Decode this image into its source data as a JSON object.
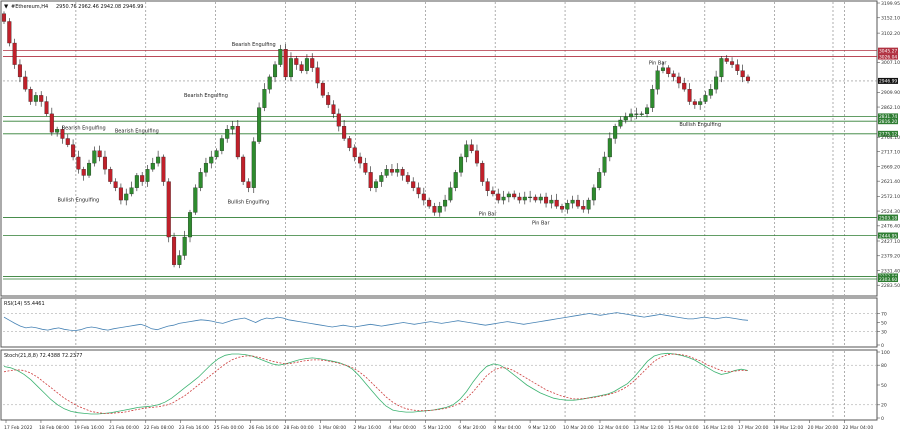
{
  "header": {
    "symbol_line": "#Ethereum,H4",
    "ohlc": "2950.76 2962.46 2942.08 2946.99"
  },
  "colors": {
    "bull": "#2e8b2e",
    "bear": "#c0202a",
    "wick": "#1a1a1a",
    "support": "#2e7d32",
    "resistance": "#b03040",
    "rsi": "#4682b4",
    "stoch_main": "#3cb371",
    "stoch_signal": "#cd3c3c",
    "grid": "#7a7a7a",
    "axis_text": "#333333",
    "bg": "#ffffff",
    "border": "#555555"
  },
  "chart_data": [
    {
      "type": "candlestick",
      "title": "#Ethereum,H4",
      "ylim": [
        2255,
        3200
      ],
      "y_ticks": [
        3199.95,
        3152.1,
        3102.2,
        3007.1,
        2909.9,
        2862.1,
        2764.1,
        2717.1,
        2669.2,
        2621.4,
        2572.1,
        2524.3,
        2476.4,
        2427.1,
        2379.2,
        2331.4,
        2283.5
      ],
      "x_labels": [
        "17 Feb 2022",
        "18 Feb 08:00",
        "19 Feb 16:00",
        "21 Feb 00:00",
        "22 Feb 08:00",
        "23 Feb 16:00",
        "25 Feb 00:00",
        "26 Feb 16:00",
        "28 Feb 00:00",
        "1 Mar 08:00",
        "2 Mar 16:00",
        "4 Mar 00:00",
        "5 Mar 12:00",
        "6 Mar 20:00",
        "8 Mar 04:00",
        "9 Mar 12:00",
        "10 Mar 20:00",
        "12 Mar 04:00",
        "13 Mar 12:00",
        "15 Mar 04:00",
        "16 Mar 12:00",
        "17 Mar 20:00",
        "19 Mar 12:00",
        "20 Mar 20:00",
        "22 Mar 04:00"
      ],
      "current_price": "2946.99",
      "levels": [
        {
          "price": 3045.27,
          "label": "3045.27",
          "kind": "resistance"
        },
        {
          "price": 3026.04,
          "label": "3026.04",
          "kind": "resistance"
        },
        {
          "price": 2831.74,
          "label": "2831.74",
          "kind": "support"
        },
        {
          "price": 2816.2,
          "label": "2816.20",
          "kind": "support"
        },
        {
          "price": 2775.12,
          "label": "2775.12",
          "kind": "support"
        },
        {
          "price": 2503.18,
          "label": "2503.18",
          "kind": "support"
        },
        {
          "price": 2444.95,
          "label": "2444.95",
          "kind": "support"
        },
        {
          "price": 2312.04,
          "label": "2312.04",
          "kind": "support"
        },
        {
          "price": 2303.6,
          "label": "2303.60",
          "kind": "support"
        }
      ],
      "annotations": [
        {
          "text": "Bearish Engulfing",
          "bar": 47,
          "price": 3060
        },
        {
          "text": "Bearish Engulfing",
          "bar": 15,
          "price": 2790
        },
        {
          "text": "Bearish Engulfing",
          "bar": 25,
          "price": 2780
        },
        {
          "text": "Bearish Engulfing",
          "bar": 38,
          "price": 2895
        },
        {
          "text": "Bullish Engulfing",
          "bar": 14,
          "price": 2555
        },
        {
          "text": "Bullish Engulfing",
          "bar": 46,
          "price": 2549
        },
        {
          "text": "Pin Bar",
          "bar": 91,
          "price": 2510
        },
        {
          "text": "Pin Bar",
          "bar": 101,
          "price": 2480
        },
        {
          "text": "Pin Bar",
          "bar": 123,
          "price": 3000
        },
        {
          "text": "Bullish Engulfing",
          "bar": 131,
          "price": 2800
        }
      ],
      "close": [
        3140,
        3070,
        3000,
        2960,
        2920,
        2880,
        2900,
        2880,
        2840,
        2780,
        2790,
        2760,
        2740,
        2700,
        2660,
        2640,
        2680,
        2720,
        2700,
        2660,
        2620,
        2600,
        2560,
        2580,
        2600,
        2640,
        2620,
        2660,
        2680,
        2700,
        2620,
        2440,
        2350,
        2380,
        2440,
        2520,
        2600,
        2650,
        2680,
        2700,
        2720,
        2760,
        2790,
        2800,
        2700,
        2620,
        2600,
        2750,
        2860,
        2920,
        2960,
        3000,
        3050,
        2960,
        3020,
        3000,
        2980,
        3020,
        2990,
        2940,
        2900,
        2870,
        2840,
        2800,
        2760,
        2730,
        2700,
        2680,
        2650,
        2600,
        2620,
        2640,
        2660,
        2650,
        2660,
        2640,
        2620,
        2600,
        2580,
        2560,
        2540,
        2520,
        2540,
        2560,
        2600,
        2650,
        2700,
        2740,
        2720,
        2680,
        2620,
        2590,
        2580,
        2560,
        2570,
        2580,
        2570,
        2560,
        2570,
        2570,
        2560,
        2570,
        2550,
        2560,
        2540,
        2530,
        2550,
        2560,
        2540,
        2530,
        2560,
        2600,
        2650,
        2700,
        2760,
        2800,
        2820,
        2830,
        2840,
        2840,
        2840,
        2860,
        2920,
        2980,
        2990,
        2970,
        2960,
        2940,
        2920,
        2880,
        2870,
        2880,
        2900,
        2920,
        2960,
        3020,
        3010,
        3000,
        2980,
        2960,
        2947
      ],
      "x_range": "17 Feb 2022 – 23 Mar 2022"
    },
    {
      "type": "line",
      "title": "RSI(14) 55.4461",
      "ylim": [
        0,
        100
      ],
      "y_ticks": [
        70,
        50,
        30,
        0
      ],
      "levels": [
        70,
        30
      ],
      "series": [
        {
          "name": "RSI(14)",
          "values": [
            62,
            55,
            48,
            42,
            38,
            40,
            38,
            35,
            33,
            36,
            38,
            35,
            33,
            32,
            34,
            38,
            40,
            38,
            35,
            33,
            36,
            38,
            40,
            42,
            44,
            46,
            42,
            36,
            34,
            38,
            42,
            44,
            48,
            50,
            52,
            54,
            56,
            55,
            53,
            50,
            48,
            52,
            56,
            58,
            60,
            55,
            50,
            56,
            60,
            58,
            62,
            60,
            56,
            54,
            52,
            50,
            48,
            46,
            44,
            42,
            40,
            42,
            44,
            42,
            40,
            42,
            44,
            46,
            44,
            42,
            44,
            46,
            48,
            50,
            48,
            46,
            48,
            50,
            52,
            50,
            48,
            50,
            52,
            54,
            52,
            50,
            48,
            46,
            44,
            46,
            48,
            50,
            52,
            50,
            48,
            46,
            48,
            50,
            52,
            54,
            56,
            58,
            60,
            62,
            64,
            66,
            68,
            70,
            68,
            66,
            68,
            70,
            72,
            70,
            68,
            66,
            64,
            62,
            64,
            66,
            68,
            66,
            64,
            62,
            60,
            58,
            58,
            60,
            62,
            60,
            58,
            60,
            62,
            60,
            58,
            56,
            55
          ]
        }
      ]
    },
    {
      "type": "line",
      "title": "Stoch(21,8,8) 72.4388 72.2377",
      "ylim": [
        0,
        100
      ],
      "y_ticks": [
        100,
        80,
        50,
        20,
        0
      ],
      "levels": [
        80,
        20
      ],
      "series": [
        {
          "name": "Main",
          "values": [
            78,
            76,
            72,
            66,
            58,
            48,
            38,
            28,
            20,
            14,
            10,
            8,
            7,
            6,
            6,
            7,
            8,
            10,
            12,
            14,
            16,
            17,
            18,
            20,
            24,
            30,
            38,
            46,
            54,
            62,
            72,
            82,
            90,
            95,
            97,
            97,
            96,
            94,
            90,
            86,
            82,
            80,
            82,
            85,
            88,
            90,
            91,
            90,
            88,
            86,
            84,
            80,
            74,
            64,
            52,
            40,
            28,
            18,
            12,
            10,
            9,
            9,
            10,
            11,
            12,
            14,
            16,
            20,
            28,
            40,
            55,
            68,
            78,
            82,
            80,
            74,
            66,
            58,
            50,
            44,
            38,
            34,
            30,
            28,
            27,
            27,
            28,
            30,
            32,
            34,
            36,
            40,
            46,
            52,
            62,
            74,
            86,
            94,
            97,
            98,
            97,
            95,
            92,
            88,
            82,
            76,
            70,
            66,
            68,
            72,
            74,
            72
          ]
        },
        {
          "name": "Signal",
          "values": [
            70,
            72,
            73,
            72,
            68,
            62,
            54,
            46,
            38,
            30,
            24,
            18,
            14,
            10,
            8,
            7,
            7,
            8,
            9,
            11,
            13,
            15,
            16,
            17,
            19,
            22,
            28,
            34,
            42,
            50,
            58,
            66,
            74,
            82,
            88,
            92,
            94,
            94,
            92,
            89,
            86,
            84,
            82,
            83,
            85,
            87,
            88,
            88,
            87,
            85,
            83,
            80,
            76,
            70,
            62,
            52,
            42,
            32,
            24,
            18,
            14,
            12,
            11,
            11,
            12,
            13,
            15,
            18,
            22,
            30,
            40,
            52,
            64,
            72,
            76,
            76,
            72,
            66,
            60,
            54,
            48,
            42,
            38,
            34,
            31,
            29,
            29,
            30,
            31,
            33,
            35,
            38,
            42,
            48,
            56,
            66,
            76,
            86,
            92,
            96,
            97,
            96,
            94,
            90,
            86,
            80,
            76,
            72,
            70,
            71,
            72,
            72
          ]
        }
      ]
    }
  ]
}
